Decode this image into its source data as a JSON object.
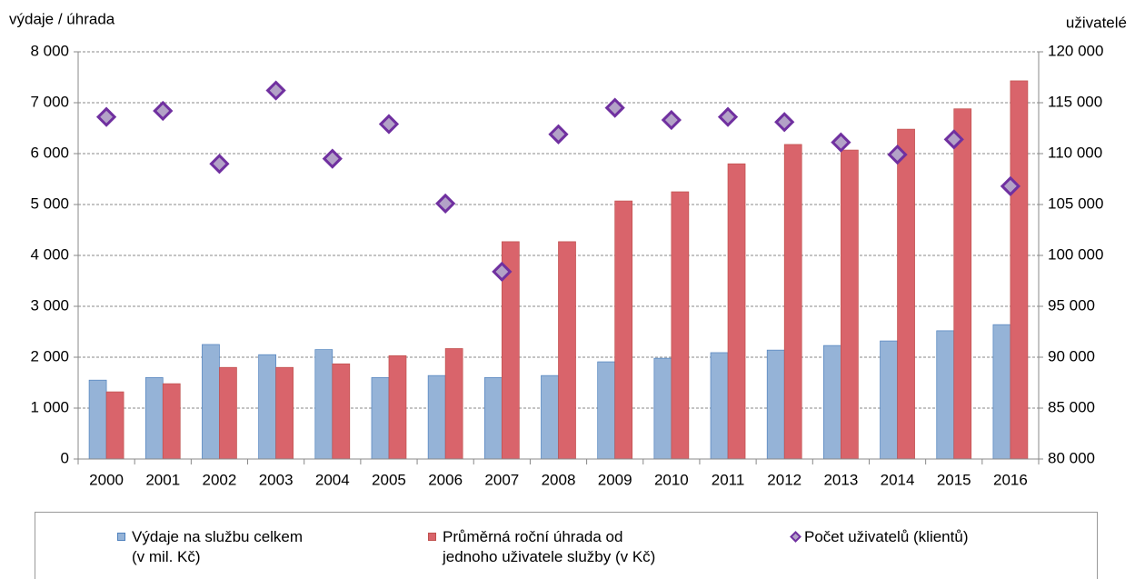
{
  "chart_data": {
    "type": "bar",
    "y_label": "výdaje  / úhrada",
    "y2_label": "uživatelé",
    "categories": [
      "2000",
      "2001",
      "2002",
      "2003",
      "2004",
      "2005",
      "2006",
      "2007",
      "2008",
      "2009",
      "2010",
      "2011",
      "2012",
      "2013",
      "2014",
      "2015",
      "2016"
    ],
    "series": [
      {
        "name": "Výdaje na službu celkem\n(v mil. Kč)",
        "type": "bar",
        "color": "#95b3d7",
        "stroke": "#4f81bd",
        "values": [
          1550,
          1600,
          2250,
          2050,
          2150,
          1600,
          1640,
          1600,
          1640,
          1910,
          1980,
          2090,
          2140,
          2230,
          2320,
          2520,
          2640
        ]
      },
      {
        "name": "Průměrná roční úhrada od\njednoho uživatele služby (v Kč)",
        "type": "bar",
        "color": "#d9646b",
        "stroke": "#c0504d",
        "values": [
          1320,
          1480,
          1800,
          1800,
          1870,
          2030,
          2170,
          4270,
          4270,
          5070,
          5250,
          5800,
          6180,
          6070,
          6480,
          6880,
          7430
        ]
      },
      {
        "name": "Počet uživatelů (klientů)",
        "type": "scatter",
        "axis": "y2",
        "color": "#b3a2c7",
        "stroke": "#7030a0",
        "values": [
          113600,
          114200,
          109000,
          116200,
          109500,
          112900,
          105100,
          98400,
          111900,
          114500,
          113300,
          113600,
          113100,
          111100,
          109900,
          111400,
          106800
        ]
      }
    ],
    "ylim": [
      0,
      8000
    ],
    "yticks": [
      0,
      {
        "value": 1000,
        "label": "1 000"
      },
      {
        "value": 2000,
        "label": "2 000"
      },
      {
        "value": 3000,
        "label": "3 000"
      },
      {
        "value": 4000,
        "label": "4 000"
      },
      {
        "value": 5000,
        "label": "5 000"
      },
      {
        "value": 6000,
        "label": "6 000"
      },
      {
        "value": 7000,
        "label": "7 000"
      },
      {
        "value": 8000,
        "label": "8 000"
      }
    ],
    "y2lim": [
      80000,
      120000
    ],
    "y2ticks": [
      {
        "value": 80000,
        "label": "80 000"
      },
      {
        "value": 85000,
        "label": "85 000"
      },
      {
        "value": 90000,
        "label": "90 000"
      },
      {
        "value": 95000,
        "label": "95 000"
      },
      {
        "value": 100000,
        "label": "100 000"
      },
      {
        "value": 105000,
        "label": "105 000"
      },
      {
        "value": 110000,
        "label": "110 000"
      },
      {
        "value": 115000,
        "label": "115 000"
      },
      {
        "value": 120000,
        "label": "120 000"
      }
    ],
    "grid": true,
    "legend": "bottom"
  }
}
